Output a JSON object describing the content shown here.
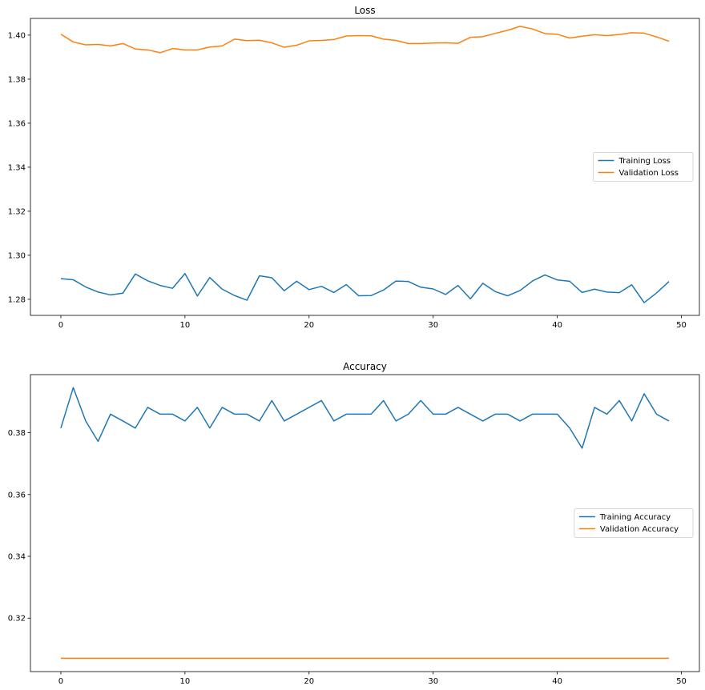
{
  "chart_data": [
    {
      "type": "line",
      "title": "Loss",
      "xlabel": "",
      "ylabel": "",
      "xlim": [
        -2.45,
        51.45
      ],
      "ylim": [
        1.2727,
        1.4076
      ],
      "xticks": [
        0,
        10,
        20,
        30,
        40,
        50
      ],
      "yticks": [
        1.28,
        1.3,
        1.32,
        1.34,
        1.36,
        1.38,
        1.4
      ],
      "ytick_labels": [
        "1.28",
        "1.30",
        "1.32",
        "1.34",
        "1.36",
        "1.38",
        "1.40"
      ],
      "grid": false,
      "legend": "center-right",
      "x": [
        0,
        1,
        2,
        3,
        4,
        5,
        6,
        7,
        8,
        9,
        10,
        11,
        12,
        13,
        14,
        15,
        16,
        17,
        18,
        19,
        20,
        21,
        22,
        23,
        24,
        25,
        26,
        27,
        28,
        29,
        30,
        31,
        32,
        33,
        34,
        35,
        36,
        37,
        38,
        39,
        40,
        41,
        42,
        43,
        44,
        45,
        46,
        47,
        48,
        49
      ],
      "series": [
        {
          "name": "Training Loss",
          "color": "#1f77b4",
          "values": [
            1.2894,
            1.2889,
            1.2856,
            1.2833,
            1.282,
            1.2828,
            1.2915,
            1.2884,
            1.2863,
            1.285,
            1.2917,
            1.2815,
            1.2899,
            1.2846,
            1.2817,
            1.2796,
            1.2907,
            1.2898,
            1.2839,
            1.2882,
            1.2844,
            1.2859,
            1.2831,
            1.2867,
            1.2816,
            1.2817,
            1.2842,
            1.2883,
            1.2881,
            1.2855,
            1.2847,
            1.2822,
            1.2863,
            1.2802,
            1.2873,
            1.2835,
            1.2816,
            1.284,
            1.2883,
            1.2911,
            1.2888,
            1.2882,
            1.2831,
            1.2846,
            1.2833,
            1.283,
            1.2866,
            1.2785,
            1.2829,
            1.2881
          ]
        },
        {
          "name": "Validation Loss",
          "color": "#ff7f0e",
          "values": [
            1.4004,
            1.3969,
            1.3956,
            1.3958,
            1.3951,
            1.3962,
            1.3937,
            1.3933,
            1.392,
            1.3939,
            1.3933,
            1.3933,
            1.3946,
            1.3951,
            1.3982,
            1.3975,
            1.3977,
            1.3965,
            1.3945,
            1.3954,
            1.3974,
            1.3976,
            1.398,
            1.3996,
            1.3998,
            1.3997,
            1.3982,
            1.3976,
            1.3962,
            1.3962,
            1.3964,
            1.3965,
            1.3963,
            1.399,
            1.3993,
            1.4008,
            1.4022,
            1.404,
            1.4028,
            1.4007,
            1.4004,
            1.3987,
            1.3995,
            1.4002,
            1.3998,
            1.4003,
            1.4011,
            1.4009,
            1.3992,
            1.3972
          ]
        }
      ]
    },
    {
      "type": "line",
      "title": "Accuracy",
      "xlabel": "",
      "ylabel": "",
      "xlim": [
        -2.45,
        51.45
      ],
      "ylim": [
        0.3027,
        0.3988
      ],
      "xticks": [
        0,
        10,
        20,
        30,
        40,
        50
      ],
      "yticks": [
        0.32,
        0.34,
        0.36,
        0.38
      ],
      "ytick_labels": [
        "0.32",
        "0.34",
        "0.36",
        "0.38"
      ],
      "grid": false,
      "legend": "center-right",
      "x": [
        0,
        1,
        2,
        3,
        4,
        5,
        6,
        7,
        8,
        9,
        10,
        11,
        12,
        13,
        14,
        15,
        16,
        17,
        18,
        19,
        20,
        21,
        22,
        23,
        24,
        25,
        26,
        27,
        28,
        29,
        30,
        31,
        32,
        33,
        34,
        35,
        36,
        37,
        38,
        39,
        40,
        41,
        42,
        43,
        44,
        45,
        46,
        47,
        48,
        49
      ],
      "series": [
        {
          "name": "Training Accuracy",
          "color": "#1f77b4",
          "values": [
            0.3815,
            0.3946,
            0.3838,
            0.3772,
            0.386,
            0.3838,
            0.3815,
            0.3882,
            0.386,
            0.386,
            0.3838,
            0.3882,
            0.3815,
            0.3882,
            0.386,
            0.386,
            0.3838,
            0.3904,
            0.3838,
            0.386,
            0.3882,
            0.3904,
            0.3838,
            0.386,
            0.386,
            0.386,
            0.3904,
            0.3838,
            0.386,
            0.3904,
            0.386,
            0.386,
            0.3882,
            0.386,
            0.3838,
            0.386,
            0.386,
            0.3838,
            0.386,
            0.386,
            0.386,
            0.3815,
            0.375,
            0.3882,
            0.386,
            0.3904,
            0.3838,
            0.3926,
            0.386,
            0.3838
          ]
        },
        {
          "name": "Validation Accuracy",
          "color": "#ff7f0e",
          "values": [
            0.307,
            0.307,
            0.307,
            0.307,
            0.307,
            0.307,
            0.307,
            0.307,
            0.307,
            0.307,
            0.307,
            0.307,
            0.307,
            0.307,
            0.307,
            0.307,
            0.307,
            0.307,
            0.307,
            0.307,
            0.307,
            0.307,
            0.307,
            0.307,
            0.307,
            0.307,
            0.307,
            0.307,
            0.307,
            0.307,
            0.307,
            0.307,
            0.307,
            0.307,
            0.307,
            0.307,
            0.307,
            0.307,
            0.307,
            0.307,
            0.307,
            0.307,
            0.307,
            0.307,
            0.307,
            0.307,
            0.307,
            0.307,
            0.307,
            0.307
          ]
        }
      ]
    }
  ]
}
